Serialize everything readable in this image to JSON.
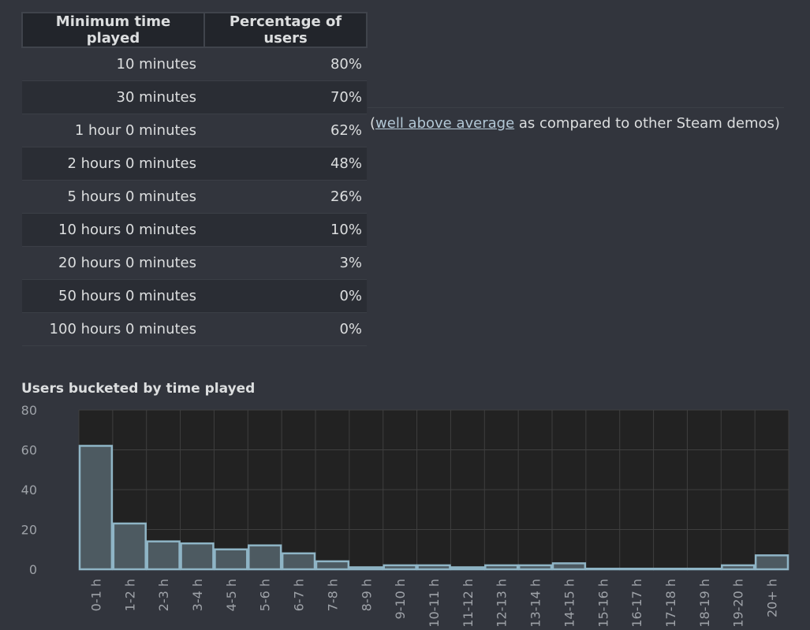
{
  "table": {
    "headers": [
      "Minimum time played",
      "Percentage of users"
    ],
    "rows": [
      {
        "time": "10 minutes",
        "pct": "80%"
      },
      {
        "time": "30 minutes",
        "pct": "70%"
      },
      {
        "time": "1 hour 0 minutes",
        "pct": "62%"
      },
      {
        "time": "2 hours 0 minutes",
        "pct": "48%"
      },
      {
        "time": "5 hours 0 minutes",
        "pct": "26%"
      },
      {
        "time": "10 hours 0 minutes",
        "pct": "10%"
      },
      {
        "time": "20 hours 0 minutes",
        "pct": "3%"
      },
      {
        "time": "50 hours 0 minutes",
        "pct": "0%"
      },
      {
        "time": "100 hours 0 minutes",
        "pct": "0%"
      }
    ]
  },
  "note": {
    "open": "(",
    "link": "well above average",
    "rest": " as compared to other Steam demos)"
  },
  "colors": {
    "background": "#32353d",
    "plot_background": "#222222",
    "bar_fill": "#4d5a61",
    "bar_stroke": "#8fb5c6",
    "grid": "#3f3f3f",
    "link": "#b3c8d6"
  },
  "chart_data": {
    "type": "bar",
    "title": "Users bucketed by time played",
    "xlabel": "",
    "ylabel": "",
    "categories": [
      "0-1 h",
      "1-2 h",
      "2-3 h",
      "3-4 h",
      "4-5 h",
      "5-6 h",
      "6-7 h",
      "7-8 h",
      "8-9 h",
      "9-10 h",
      "10-11 h",
      "11-12 h",
      "12-13 h",
      "13-14 h",
      "14-15 h",
      "15-16 h",
      "16-17 h",
      "17-18 h",
      "18-19 h",
      "19-20 h",
      "20+ h"
    ],
    "values": [
      62,
      23,
      14,
      13,
      10,
      12,
      8,
      4,
      1,
      2,
      2,
      1,
      2,
      2,
      3,
      0.3,
      0.3,
      0.3,
      0.3,
      2,
      7
    ],
    "ylim": [
      0,
      80
    ],
    "yticks": [
      0,
      20,
      40,
      60,
      80
    ],
    "grid": true,
    "legend": "none"
  }
}
